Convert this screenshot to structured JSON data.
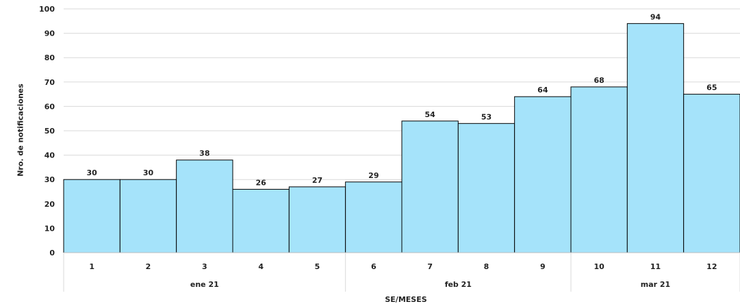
{
  "chart_data": {
    "type": "bar",
    "title": "",
    "categories": [
      "1",
      "2",
      "3",
      "4",
      "5",
      "6",
      "7",
      "8",
      "9",
      "10",
      "11",
      "12"
    ],
    "values": [
      30,
      30,
      38,
      26,
      27,
      29,
      54,
      53,
      64,
      68,
      94,
      65
    ],
    "groups": [
      {
        "label": "ene 21",
        "categories": [
          "1",
          "2",
          "3",
          "4",
          "5"
        ]
      },
      {
        "label": "feb 21",
        "categories": [
          "6",
          "7",
          "8",
          "9"
        ]
      },
      {
        "label": "mar 21",
        "categories": [
          "10",
          "11",
          "12"
        ]
      }
    ],
    "xlabel": "SE/MESES",
    "ylabel": "Nro. de notificaciones",
    "ylim": [
      0,
      100
    ],
    "yticks": [
      0,
      10,
      20,
      30,
      40,
      50,
      60,
      70,
      80,
      90,
      100
    ],
    "grid": true,
    "data_labels": true,
    "colors": {
      "bar_fill": "#A5E3FA",
      "bar_stroke": "#000000",
      "grid": "#D9D9D9"
    }
  }
}
